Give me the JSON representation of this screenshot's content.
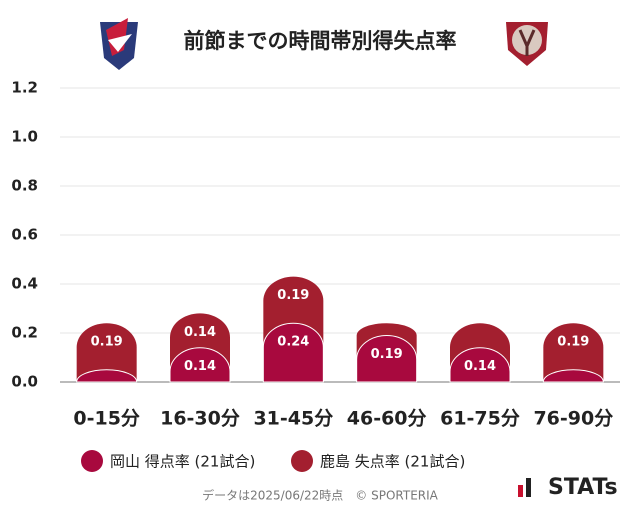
{
  "chart_data": {
    "type": "stacked_bar",
    "title": "前節までの時間帯別得失点率",
    "categories": [
      "0-15分",
      "16-30分",
      "31-45分",
      "46-60分",
      "61-75分",
      "76-90分"
    ],
    "series": [
      {
        "name": "岡山 得点率 (21試合)",
        "color": "#a8093e",
        "values": [
          0.05,
          0.14,
          0.24,
          0.19,
          0.14,
          0.05
        ],
        "value_labels": [
          null,
          "0.14",
          "0.24",
          "0.19",
          "0.14",
          null
        ]
      },
      {
        "name": "鹿島 失点率 (21試合)",
        "color": "#a31f2f",
        "values": [
          0.19,
          0.14,
          0.19,
          0.05,
          0.1,
          0.19
        ],
        "value_labels": [
          "0.19",
          "0.14",
          "0.19",
          null,
          null,
          "0.19"
        ]
      }
    ],
    "ylim": [
      0,
      1.2
    ],
    "yticks": [
      {
        "value": 0,
        "label": "0.0"
      },
      0.2,
      0.4,
      0.6,
      0.8,
      {
        "value": 1,
        "label": "1.0"
      },
      1.2
    ],
    "grid": true
  },
  "footer": {
    "note": "データは2025/06/22時点　© SPORTERIA",
    "brand": "STATs"
  }
}
